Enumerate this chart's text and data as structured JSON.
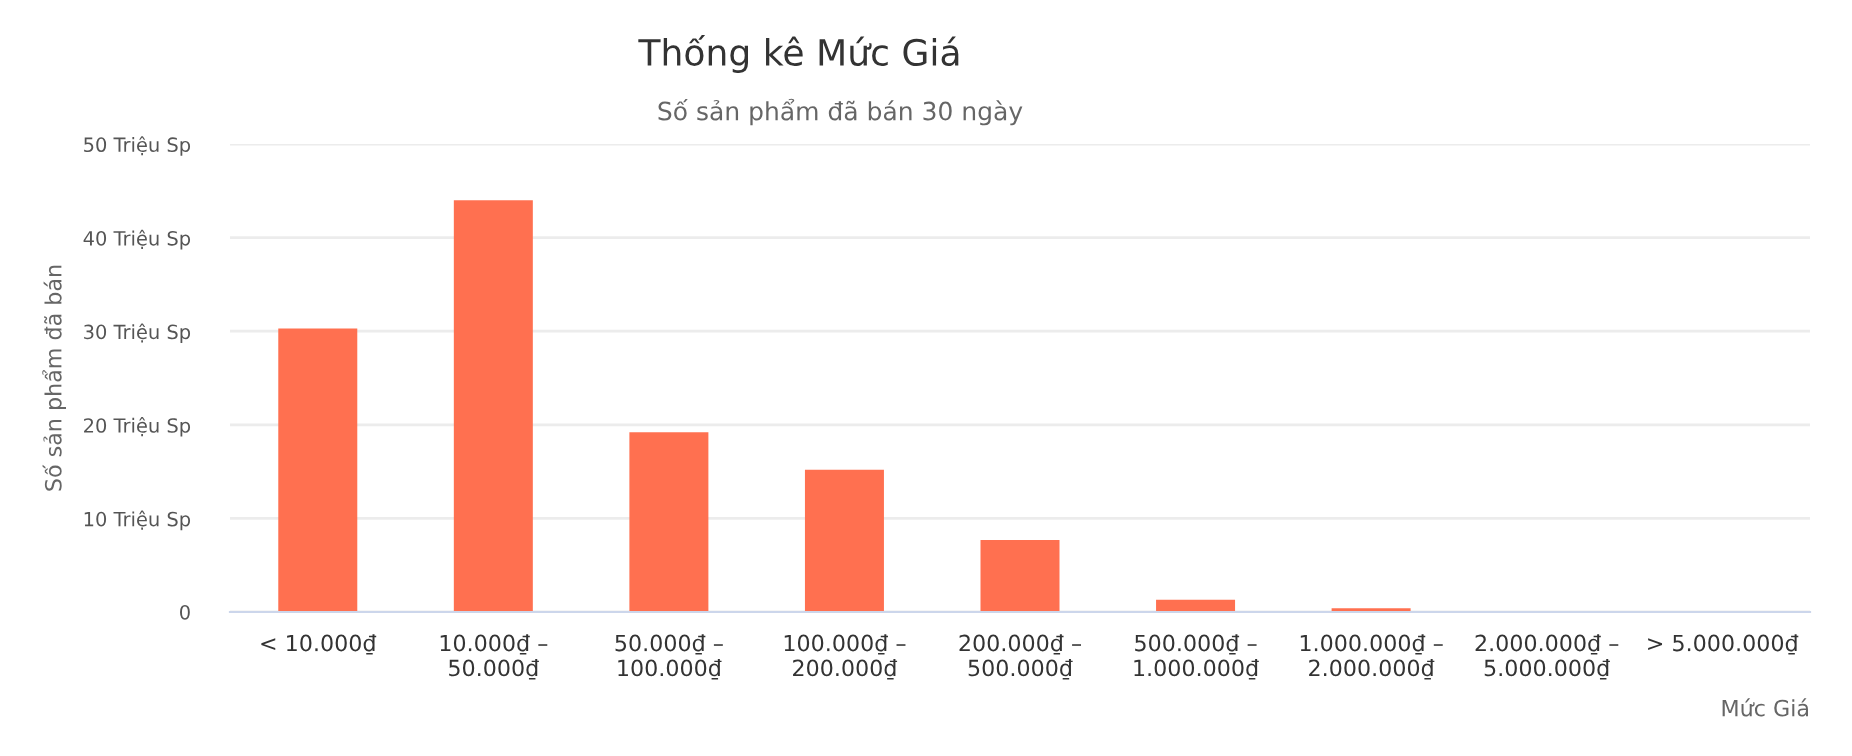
{
  "chart_data": {
    "type": "bar",
    "title": "Thống kê Mức Giá",
    "subtitle": "Số sản phẩm đã bán 30 ngày",
    "xlabel": "Mức Giá",
    "ylabel": "Số sản phẩm đã bán",
    "categories": [
      "< 10.000₫",
      "10.000₫ –\n50.000₫",
      "50.000₫ –\n100.000₫",
      "100.000₫ –\n200.000₫",
      "200.000₫ –\n500.000₫",
      "500.000₫ –\n1.000.000₫",
      "1.000.000₫ –\n2.000.000₫",
      "2.000.000₫ –\n5.000.000₫",
      "> 5.000.000₫"
    ],
    "values": [
      30.3,
      44.0,
      19.2,
      15.2,
      7.7,
      1.3,
      0.4,
      null,
      null
    ],
    "color": "#ff7050",
    "ylim": [
      0,
      50
    ],
    "yticks": [
      0,
      {
        "value": 10,
        "label": "10 Triệu Sp"
      },
      {
        "value": 20,
        "label": "20 Triệu Sp"
      },
      {
        "value": 30,
        "label": "30 Triệu Sp"
      },
      {
        "value": 40,
        "label": "40 Triệu Sp"
      },
      {
        "value": 50,
        "label": "50 Triệu Sp"
      }
    ],
    "grid": "y",
    "legend": false
  }
}
